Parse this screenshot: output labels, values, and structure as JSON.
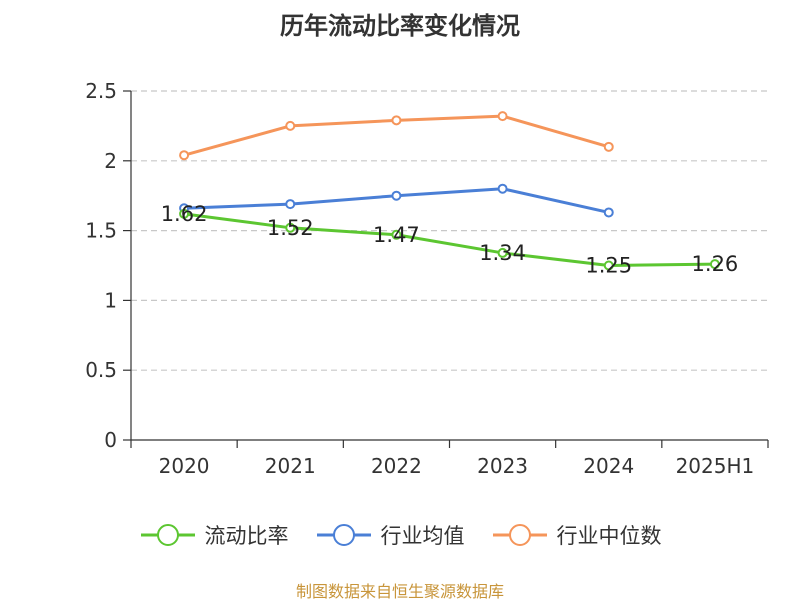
{
  "title": "历年流动比率变化情况",
  "source": "制图数据来自恒生聚源数据库",
  "chart_data": {
    "type": "line",
    "categories": [
      "2020",
      "2021",
      "2022",
      "2023",
      "2024",
      "2025H1"
    ],
    "ylim": [
      0,
      2.5
    ],
    "yticks": [
      "0",
      "0.5",
      "1",
      "1.5",
      "2",
      "2.5"
    ],
    "grid": true,
    "legend_position": "bottom",
    "series": [
      {
        "name": "流动比率",
        "color": "#5cc631",
        "values": [
          1.62,
          1.52,
          1.47,
          1.34,
          1.25,
          1.26
        ],
        "labels": [
          "1.62",
          "1.52",
          "1.47",
          "1.34",
          "1.25",
          "1.26"
        ]
      },
      {
        "name": "行业均值",
        "color": "#4a7fd6",
        "values": [
          1.66,
          1.69,
          1.75,
          1.8,
          1.63,
          null
        ]
      },
      {
        "name": "行业中位数",
        "color": "#f5955a",
        "values": [
          2.04,
          2.25,
          2.29,
          2.32,
          2.1,
          null
        ]
      }
    ]
  }
}
